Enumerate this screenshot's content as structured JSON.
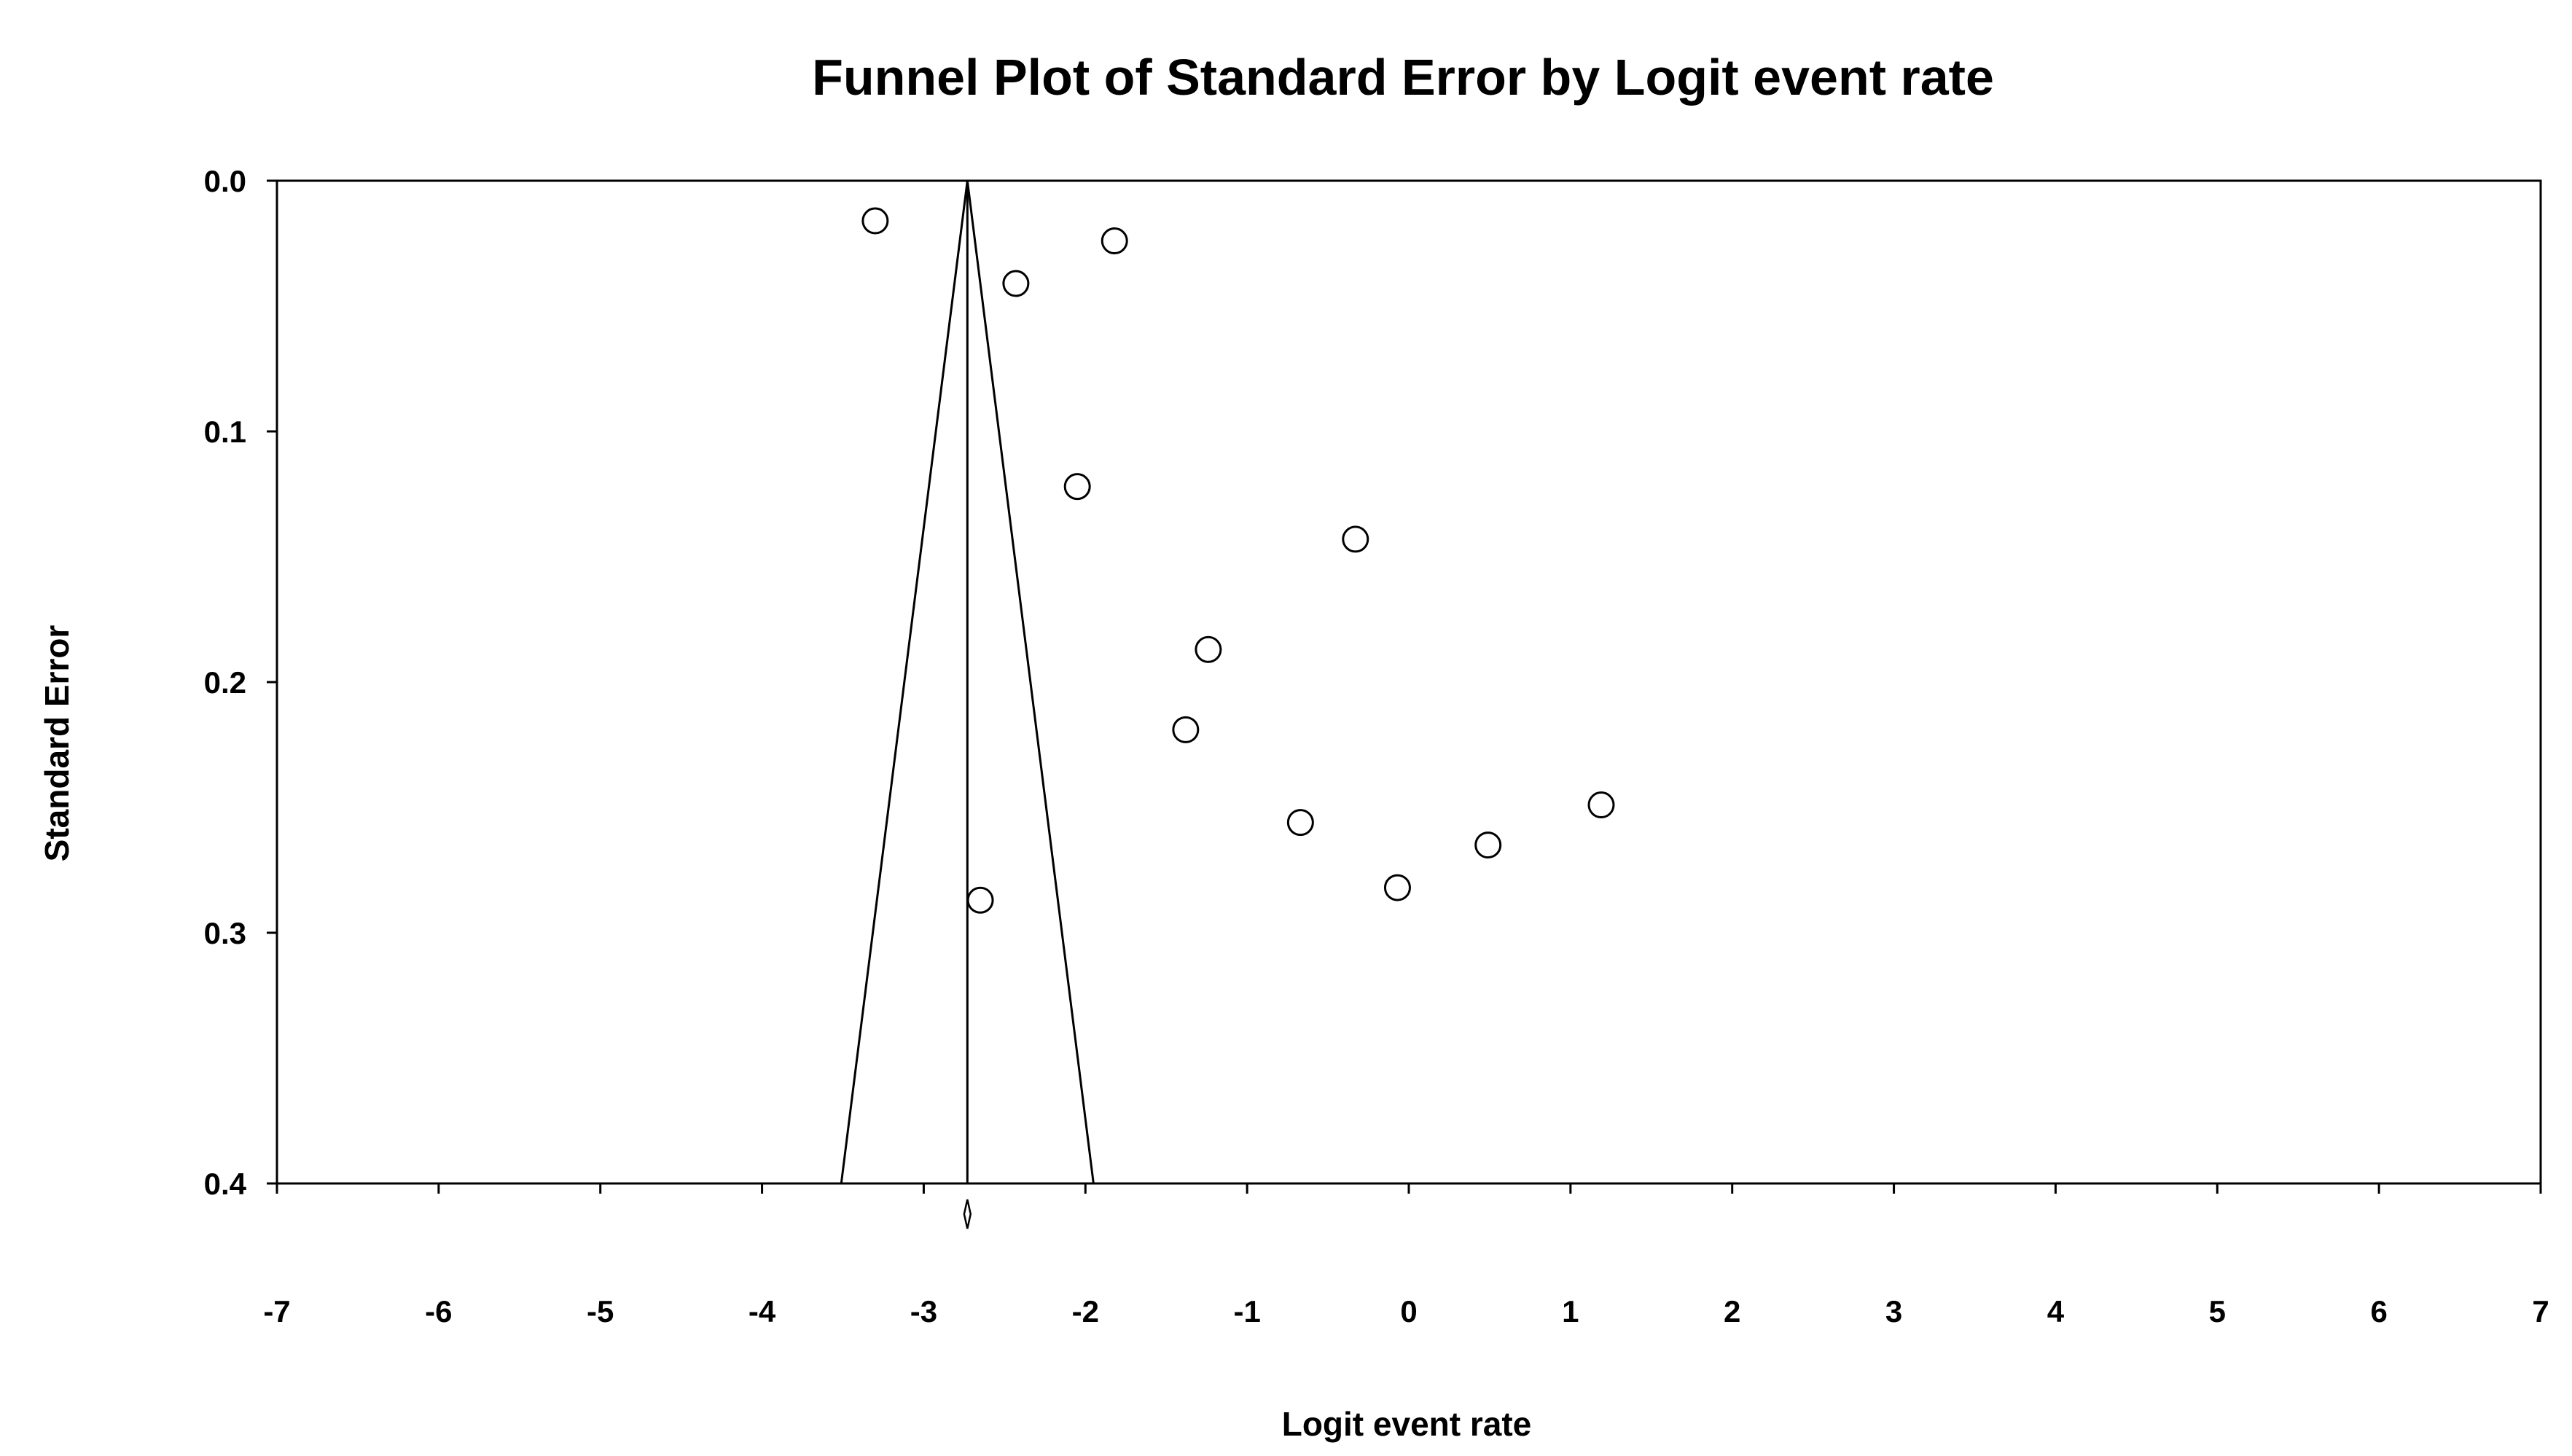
{
  "chart_data": {
    "type": "scatter",
    "title": "Funnel Plot of Standard Error by Logit event rate",
    "xlabel": "Logit event rate",
    "ylabel": "Standard Error",
    "xlim": [
      -7,
      7
    ],
    "ylim": [
      0.0,
      0.4
    ],
    "y_inverted": true,
    "x_ticks": [
      "-7",
      "-6",
      "-5",
      "-4",
      "-3",
      "-2",
      "-1",
      "0",
      "1",
      "2",
      "3",
      "4",
      "5",
      "6",
      "7"
    ],
    "y_ticks": [
      "0.0",
      "0.1",
      "0.2",
      "0.3",
      "0.4"
    ],
    "grid": false,
    "legend": "none",
    "marker": "open circle",
    "points": [
      {
        "x": -3.3,
        "y": 0.016
      },
      {
        "x": -1.82,
        "y": 0.024
      },
      {
        "x": -2.43,
        "y": 0.041
      },
      {
        "x": -2.05,
        "y": 0.122
      },
      {
        "x": -0.33,
        "y": 0.143
      },
      {
        "x": -1.24,
        "y": 0.187
      },
      {
        "x": -1.38,
        "y": 0.219
      },
      {
        "x": -0.67,
        "y": 0.256
      },
      {
        "x": 1.19,
        "y": 0.249
      },
      {
        "x": 0.49,
        "y": 0.265
      },
      {
        "x": -0.07,
        "y": 0.282
      },
      {
        "x": -2.65,
        "y": 0.287
      }
    ],
    "pooled_estimate": -2.73,
    "funnel": {
      "apex": {
        "x": -2.73,
        "y": 0.0
      },
      "base_left": {
        "x": -3.51,
        "y": 0.4
      },
      "base_right": {
        "x": -1.95,
        "y": 0.4
      }
    },
    "summary_diamond": {
      "center": -2.73,
      "lower": -2.75,
      "upper": -2.71
    }
  }
}
